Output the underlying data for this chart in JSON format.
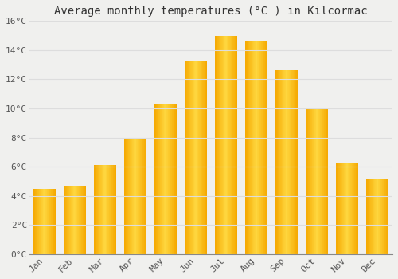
{
  "title": "Average monthly temperatures (°C ) in Kilcormac",
  "months": [
    "Jan",
    "Feb",
    "Mar",
    "Apr",
    "May",
    "Jun",
    "Jul",
    "Aug",
    "Sep",
    "Oct",
    "Nov",
    "Dec"
  ],
  "values": [
    4.5,
    4.7,
    6.1,
    8.0,
    10.3,
    13.2,
    15.0,
    14.6,
    12.6,
    10.0,
    6.3,
    5.2
  ],
  "bar_color_outer": "#F5A800",
  "bar_color_inner": "#FFD840",
  "background_color": "#F0F0EE",
  "grid_color": "#DDDDDD",
  "ylim": [
    0,
    16
  ],
  "ytick_step": 2,
  "title_fontsize": 10,
  "tick_fontsize": 8,
  "font_family": "monospace",
  "bar_width": 0.75
}
